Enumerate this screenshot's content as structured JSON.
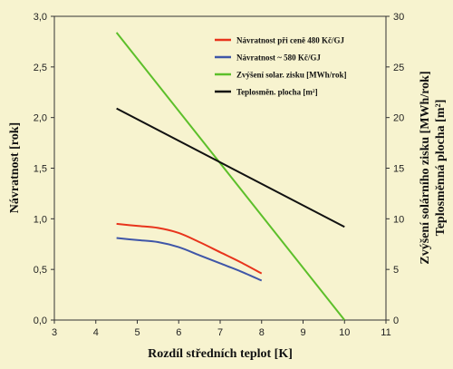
{
  "chart_data": {
    "type": "line",
    "xlabel": "Rozdíl středních teplot [K]",
    "ylabel_left": "Návratnost [rok]",
    "ylabel_right_1": "Zvýšení solárního zisku [MWh/rok]",
    "ylabel_right_2": "Teplosměnná plocha [m²]",
    "xlim": [
      3,
      11
    ],
    "ylim_left": [
      0,
      3
    ],
    "ylim_right": [
      0,
      30
    ],
    "x_ticks": [
      "3",
      "4",
      "5",
      "6",
      "7",
      "8",
      "9",
      "10",
      "11"
    ],
    "y_left_ticks": [
      "0,0",
      "0,5",
      "1,0",
      "1,5",
      "2,0",
      "2,5",
      "3,0"
    ],
    "y_right_ticks": [
      "0",
      "5",
      "10",
      "15",
      "20",
      "25",
      "30"
    ],
    "grid": false,
    "legend_position": "top-right",
    "series": [
      {
        "name": "Návratnost při ceně 480 Kč/GJ",
        "axis": "left",
        "color": "#e8341c",
        "points": [
          [
            4.5,
            0.95
          ],
          [
            5.0,
            0.93
          ],
          [
            5.5,
            0.91
          ],
          [
            6.0,
            0.86
          ],
          [
            6.5,
            0.77
          ],
          [
            7.0,
            0.67
          ],
          [
            7.5,
            0.57
          ],
          [
            8.0,
            0.46
          ]
        ]
      },
      {
        "name": "Návratnost ~ 580 Kč/GJ",
        "axis": "left",
        "color": "#3f56a8",
        "points": [
          [
            4.5,
            0.81
          ],
          [
            5.0,
            0.79
          ],
          [
            5.5,
            0.77
          ],
          [
            6.0,
            0.72
          ],
          [
            6.5,
            0.64
          ],
          [
            7.0,
            0.56
          ],
          [
            7.5,
            0.48
          ],
          [
            8.0,
            0.39
          ]
        ]
      },
      {
        "name": "Zvýšení solar. zisku [MWh/rok]",
        "axis": "right",
        "color": "#5cbf2a",
        "points": [
          [
            4.5,
            28.4
          ],
          [
            10.0,
            0.0
          ]
        ]
      },
      {
        "name": "Teplosměn. plocha [m²]",
        "axis": "right",
        "color": "#111111",
        "points": [
          [
            4.5,
            20.9
          ],
          [
            10.0,
            9.2
          ]
        ]
      }
    ]
  }
}
